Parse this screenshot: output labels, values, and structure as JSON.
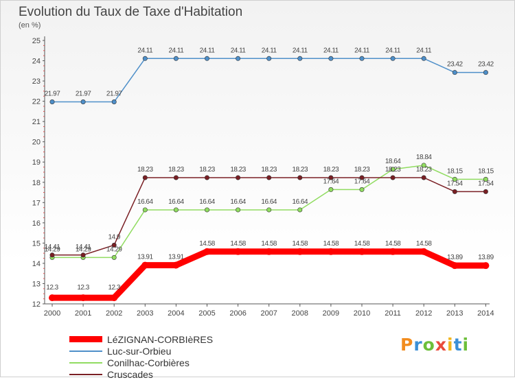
{
  "title": "Evolution du Taux de Taxe d'Habitation",
  "subtitle": "(en %)",
  "logo": "Proxiti",
  "chart_data": {
    "type": "line",
    "title": "Evolution du Taux de Taxe d'Habitation",
    "ylabel": "(en %)",
    "x": [
      "2000",
      "2001",
      "2002",
      "2003",
      "2004",
      "2005",
      "2006",
      "2007",
      "2008",
      "2009",
      "2010",
      "2011",
      "2012",
      "2013",
      "2014"
    ],
    "ylim": [
      12,
      25
    ],
    "yticks": [
      "12",
      "13",
      "14",
      "15",
      "16",
      "17",
      "18",
      "19",
      "20",
      "21",
      "22",
      "23",
      "24",
      "25"
    ],
    "grid": false,
    "legend_position": "bottom-left",
    "series": [
      {
        "name": "LéZIGNAN-CORBIèRES",
        "color": "#ff0000",
        "values": [
          12.3,
          12.3,
          12.3,
          13.91,
          13.91,
          14.58,
          14.58,
          14.58,
          14.58,
          14.58,
          14.58,
          14.58,
          14.58,
          13.89,
          13.89
        ],
        "labels": [
          "12.3",
          "12.3",
          "12.3",
          "13.91",
          "13.91",
          "14.58",
          "14.58",
          "14.58",
          "14.58",
          "14.58",
          "14.58",
          "14.58",
          "14.58",
          "13.89",
          "13.89"
        ]
      },
      {
        "name": "Luc-sur-Orbieu",
        "color": "#4e8fc9",
        "values": [
          21.97,
          21.97,
          21.97,
          24.11,
          24.11,
          24.11,
          24.11,
          24.11,
          24.11,
          24.11,
          24.11,
          24.11,
          24.11,
          23.42,
          23.42
        ],
        "labels": [
          "21.97",
          "21.97",
          "21.97",
          "24.11",
          "24.11",
          "24.11",
          "24.11",
          "24.11",
          "24.11",
          "24.11",
          "24.11",
          "24.11",
          "24.11",
          "23.42",
          "23.42"
        ]
      },
      {
        "name": "Conilhac-Corbières",
        "color": "#90dc60",
        "values": [
          14.29,
          14.29,
          14.29,
          16.64,
          16.64,
          16.64,
          16.64,
          16.64,
          16.64,
          17.64,
          17.64,
          18.64,
          18.84,
          18.15,
          18.15
        ],
        "labels": [
          "14.29",
          "14.29",
          "14.29",
          "16.64",
          "16.64",
          "16.64",
          "16.64",
          "16.64",
          "16.64",
          "17.64",
          "17.64",
          "18.64",
          "18.84",
          "18.15",
          "18.15"
        ]
      },
      {
        "name": "Cruscades",
        "color": "#7a1f24",
        "values": [
          14.41,
          14.41,
          14.9,
          18.23,
          18.23,
          18.23,
          18.23,
          18.23,
          18.23,
          18.23,
          18.23,
          18.23,
          18.23,
          17.54,
          17.54
        ],
        "labels": [
          "14.41",
          "14.41",
          "14.9",
          "18.23",
          "18.23",
          "18.23",
          "18.23",
          "18.23",
          "18.23",
          "18.23",
          "18.23",
          "18.23",
          "18.23",
          "17.54",
          "17.54"
        ]
      }
    ]
  }
}
